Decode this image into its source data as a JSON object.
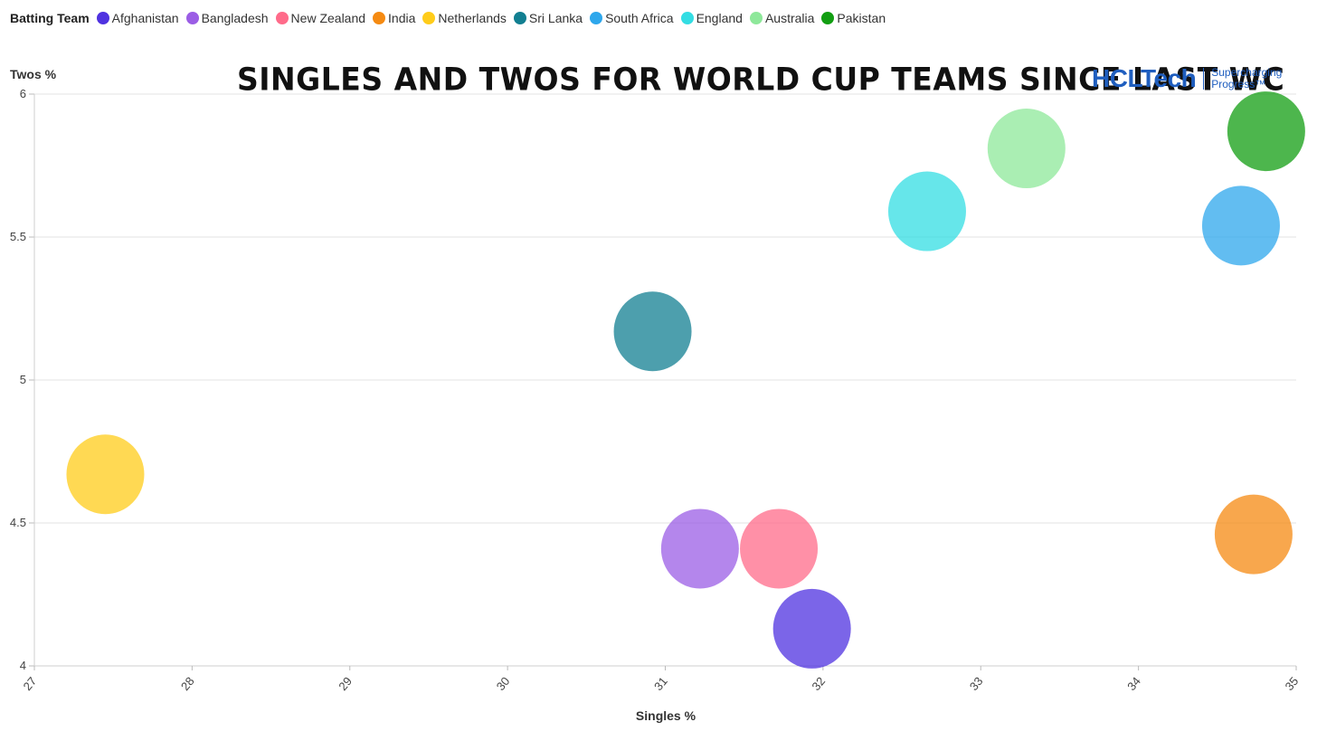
{
  "legend": {
    "title": "Batting Team",
    "items": [
      {
        "label": "Afghanistan",
        "color": "#4f32e0"
      },
      {
        "label": "Bangladesh",
        "color": "#9b5de5"
      },
      {
        "label": "New Zealand",
        "color": "#ff6b8a"
      },
      {
        "label": "India",
        "color": "#f58a12"
      },
      {
        "label": "Netherlands",
        "color": "#ffcc1a"
      },
      {
        "label": "Sri Lanka",
        "color": "#127f91"
      },
      {
        "label": "South Africa",
        "color": "#2ea7ec"
      },
      {
        "label": "England",
        "color": "#33dde3"
      },
      {
        "label": "Australia",
        "color": "#8ee89a"
      },
      {
        "label": "Pakistan",
        "color": "#129e12"
      }
    ]
  },
  "brand": {
    "name": "HCLTech",
    "tagline_line1": "Supercharging",
    "tagline_line2": "Progress™"
  },
  "chart_data": {
    "type": "scatter",
    "title": "SINGLES AND TWOS FOR WORLD CUP TEAMS SINCE LAST WC",
    "xlabel": "Singles %",
    "ylabel": "Twos %",
    "xlim": [
      27,
      35
    ],
    "ylim": [
      4,
      6
    ],
    "xticks": [
      27,
      28,
      29,
      30,
      31,
      32,
      33,
      34,
      35
    ],
    "yticks": [
      4,
      4.5,
      5,
      5.5,
      6
    ],
    "grid": true,
    "legend_position": "top",
    "points": [
      {
        "team": "Afghanistan",
        "x": 31.93,
        "y": 4.13,
        "color": "#4f32e0"
      },
      {
        "team": "Bangladesh",
        "x": 31.22,
        "y": 4.41,
        "color": "#9b5de5"
      },
      {
        "team": "New Zealand",
        "x": 31.72,
        "y": 4.41,
        "color": "#ff6b8a"
      },
      {
        "team": "India",
        "x": 34.73,
        "y": 4.46,
        "color": "#f58a12"
      },
      {
        "team": "Netherlands",
        "x": 27.45,
        "y": 4.67,
        "color": "#ffcc1a"
      },
      {
        "team": "Sri Lanka",
        "x": 30.92,
        "y": 5.17,
        "color": "#127f91"
      },
      {
        "team": "South Africa",
        "x": 34.65,
        "y": 5.54,
        "color": "#2ea7ec"
      },
      {
        "team": "England",
        "x": 32.66,
        "y": 5.59,
        "color": "#33dde3"
      },
      {
        "team": "Australia",
        "x": 33.29,
        "y": 5.81,
        "color": "#8ee89a"
      },
      {
        "team": "Pakistan",
        "x": 34.81,
        "y": 5.87,
        "color": "#129e12"
      }
    ]
  }
}
